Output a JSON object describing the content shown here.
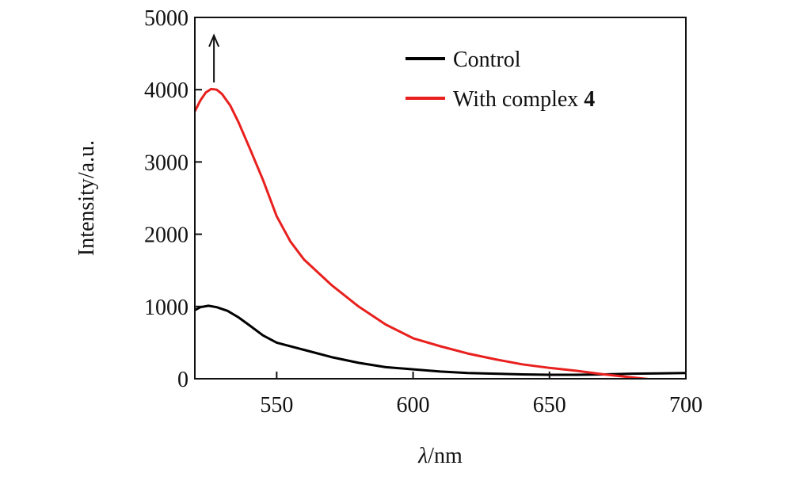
{
  "chart_data": {
    "type": "line",
    "title": "",
    "xlabel_italic": "λ",
    "xlabel_rest": "/nm",
    "ylabel": "Intensity/a.u.",
    "xlim": [
      520,
      700
    ],
    "ylim": [
      0,
      5000
    ],
    "xticks": [
      550,
      600,
      650,
      700
    ],
    "yticks": [
      0,
      1000,
      2000,
      3000,
      4000,
      5000
    ],
    "grid": false,
    "legend_position": "top-right",
    "annotation": {
      "type": "arrow-up",
      "x": 527,
      "y_from": 4100,
      "y_to": 4750
    },
    "series": [
      {
        "name": "Control",
        "color": "#000000",
        "x": [
          520,
          522,
          525,
          528,
          532,
          536,
          540,
          545,
          550,
          560,
          570,
          580,
          590,
          600,
          610,
          620,
          630,
          640,
          650,
          660,
          670,
          680,
          690,
          700
        ],
        "y": [
          950,
          990,
          1010,
          990,
          940,
          850,
          740,
          600,
          500,
          400,
          300,
          220,
          160,
          130,
          100,
          80,
          70,
          60,
          55,
          55,
          60,
          70,
          75,
          80
        ]
      },
      {
        "name": "With complex ",
        "name_bold": "4",
        "color": "#e8201e",
        "x": [
          520,
          522,
          524,
          526,
          528,
          530,
          533,
          536,
          540,
          545,
          550,
          555,
          560,
          570,
          580,
          590,
          600,
          610,
          620,
          630,
          640,
          650,
          660,
          670,
          680,
          690,
          700
        ],
        "y": [
          3700,
          3850,
          3960,
          4010,
          4000,
          3940,
          3780,
          3550,
          3200,
          2750,
          2250,
          1900,
          1650,
          1300,
          1000,
          750,
          560,
          450,
          350,
          270,
          200,
          150,
          110,
          60,
          20,
          -20,
          -60
        ]
      }
    ]
  }
}
